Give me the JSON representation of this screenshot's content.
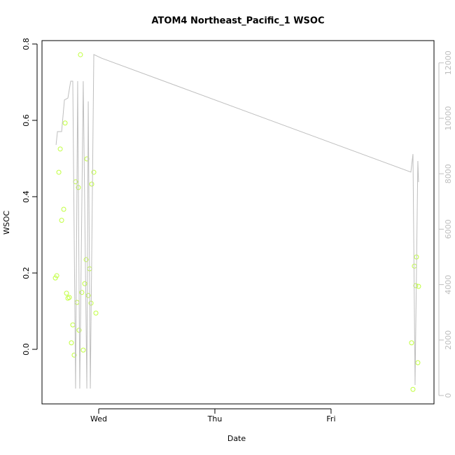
{
  "chart_data": {
    "type": "scatter",
    "title": "ATOM4 Northeast_Pacific_1 WSOC",
    "x_label": "Date",
    "y_label": "WSOC",
    "xlim": [
      -0.488,
      2.886
    ],
    "xticks": [
      {
        "value": 0,
        "label": "Wed"
      },
      {
        "value": 1,
        "label": "Thu"
      },
      {
        "value": 2,
        "label": "Fri"
      }
    ],
    "ylim": [
      -0.143,
      0.809
    ],
    "yticks": [
      {
        "value": 0,
        "label": "0.0"
      },
      {
        "value": 0.2,
        "label": "0.2"
      },
      {
        "value": 0.4,
        "label": "0.4"
      },
      {
        "value": 0.6,
        "label": "0.6"
      },
      {
        "value": 0.8,
        "label": "0.8"
      }
    ],
    "y2lim": [
      -303,
      12803
    ],
    "y2ticks": [
      0,
      2000,
      4000,
      6000,
      8000,
      10000,
      12000
    ],
    "y2_color": "#bebebe",
    "series": [
      {
        "type": "scatter",
        "color": "#c0ff3e",
        "x": [
          -0.373,
          -0.361,
          -0.343,
          -0.331,
          -0.319,
          -0.301,
          -0.289,
          -0.277,
          -0.265,
          -0.253,
          -0.235,
          -0.223,
          -0.211,
          -0.199,
          -0.187,
          -0.175,
          -0.169,
          -0.157,
          -0.145,
          -0.133,
          -0.12,
          -0.108,
          -0.102,
          -0.09,
          -0.078,
          -0.066,
          -0.06,
          -0.042,
          -0.024,
          2.693,
          2.705,
          2.717,
          2.729,
          2.735,
          2.747,
          2.753
        ],
        "values": [
          0.187,
          0.193,
          0.464,
          0.525,
          0.338,
          0.367,
          0.593,
          0.147,
          0.134,
          0.136,
          0.017,
          0.064,
          -0.015,
          0.439,
          0.123,
          0.424,
          0.05,
          0.772,
          0.149,
          -0.002,
          0.172,
          0.235,
          0.499,
          0.141,
          0.211,
          0.121,
          0.433,
          0.464,
          0.095,
          0.017,
          -0.105,
          0.218,
          0.167,
          0.242,
          -0.035,
          0.165
        ]
      },
      {
        "type": "line",
        "axis": "y2",
        "color": "#bebebe",
        "x": [
          -0.367,
          -0.355,
          -0.319,
          -0.295,
          -0.265,
          -0.241,
          -0.223,
          -0.199,
          -0.181,
          -0.163,
          -0.133,
          -0.102,
          -0.09,
          -0.072,
          -0.042,
          0.024,
          2.687,
          2.705,
          2.723,
          2.747,
          2.753
        ],
        "values": [
          9040,
          9520,
          9520,
          10660,
          10730,
          11340,
          11340,
          250,
          11340,
          250,
          11340,
          250,
          10610,
          250,
          12300,
          12170,
          8060,
          8710,
          380,
          8460,
          7700
        ]
      }
    ]
  }
}
